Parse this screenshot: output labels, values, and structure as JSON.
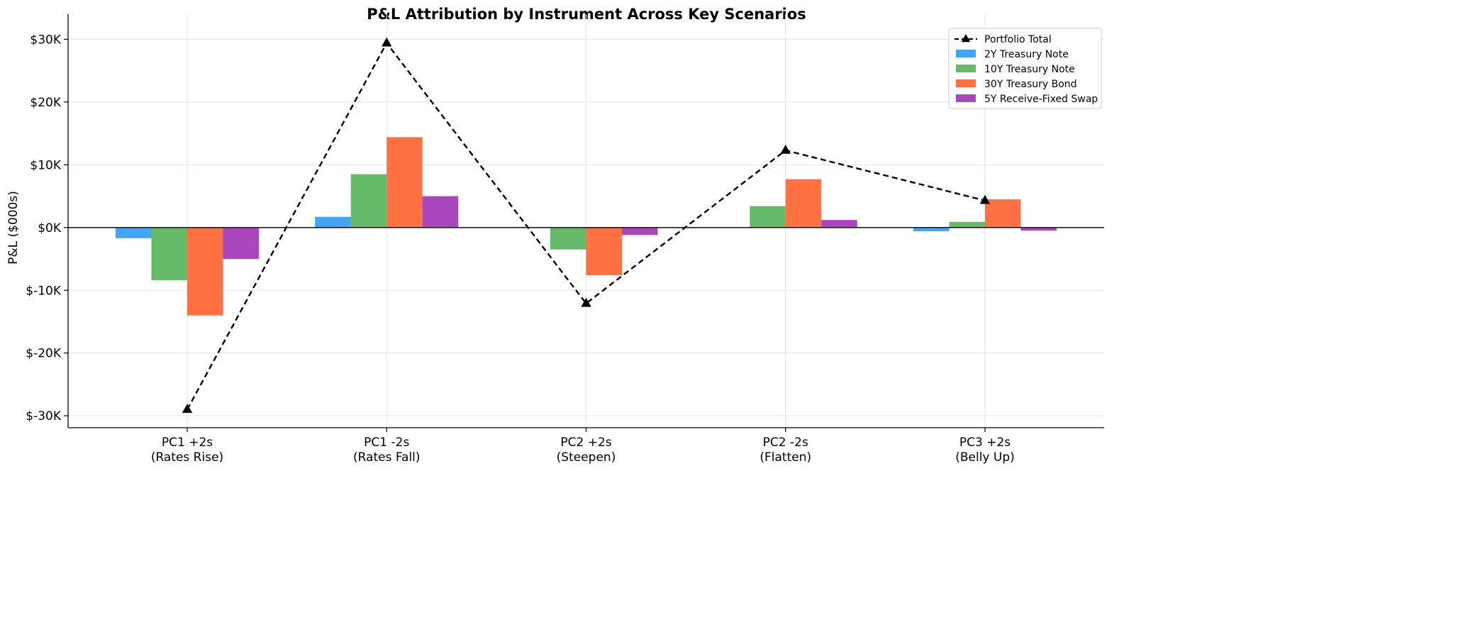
{
  "chart_data": {
    "type": "bar",
    "title": "P&L Attribution by Instrument Across Key Scenarios",
    "xlabel": "",
    "ylabel": "P&L ($000s)",
    "categories": [
      "PC1 +2s\n(Rates Rise)",
      "PC1 -2s\n(Rates Fall)",
      "PC2 +2s\n(Steepen)",
      "PC2 -2s\n(Flatten)",
      "PC3 +2s\n(Belly Up)"
    ],
    "yticks": [
      -30,
      -20,
      -10,
      0,
      10,
      20,
      30
    ],
    "ytick_labels": [
      "$-30K",
      "$-20K",
      "$-10K",
      "$0K",
      "$10K",
      "$20K",
      "$30K"
    ],
    "ylim": [
      -31.9,
      34.0
    ],
    "grid": true,
    "legend_position": "top-right",
    "series": [
      {
        "name": "2Y Treasury Note",
        "color": "#42a5f5",
        "values": [
          -1.7,
          1.7,
          0.1,
          0.0,
          -0.6
        ]
      },
      {
        "name": "10Y Treasury Note",
        "color": "#66bb6a",
        "values": [
          -8.4,
          8.5,
          -3.5,
          3.4,
          0.9
        ]
      },
      {
        "name": "30Y Treasury Bond",
        "color": "#ff7043",
        "values": [
          -14.0,
          14.4,
          -7.6,
          7.7,
          4.5
        ]
      },
      {
        "name": "5Y Receive-Fixed Swap",
        "color": "#ab47bc",
        "values": [
          -5.0,
          5.0,
          -1.2,
          1.2,
          -0.5
        ]
      }
    ],
    "line_series": {
      "name": "Portfolio Total",
      "type": "line",
      "style": "dashed",
      "marker": "triangle",
      "color": "#000000",
      "values": [
        -29.0,
        29.4,
        -12.1,
        12.3,
        4.3
      ]
    }
  }
}
